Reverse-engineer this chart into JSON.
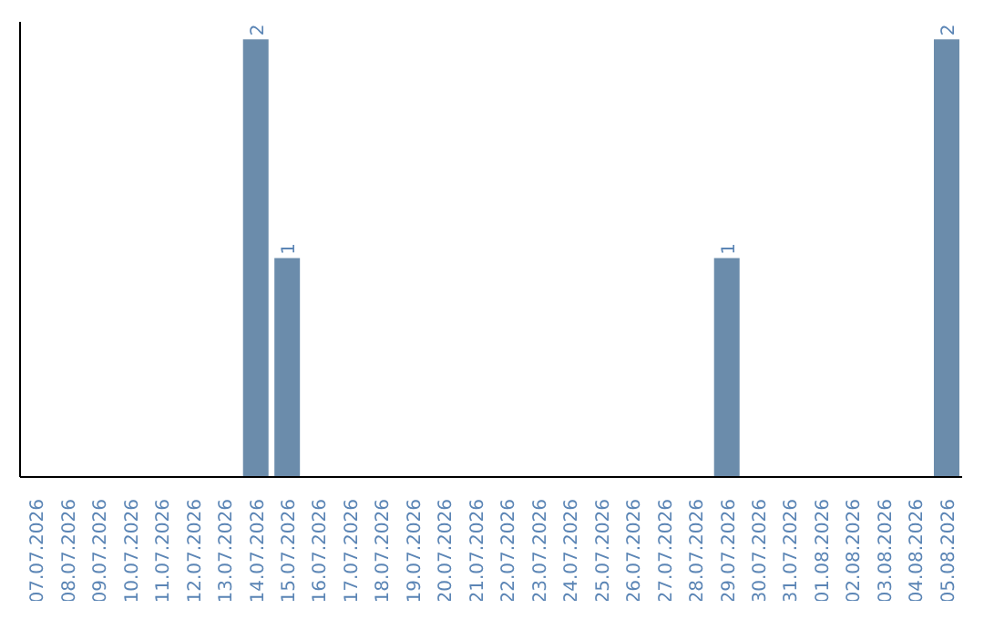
{
  "chart_data": {
    "type": "bar",
    "categories": [
      "07.07.2026",
      "08.07.2026",
      "09.07.2026",
      "10.07.2026",
      "11.07.2026",
      "12.07.2026",
      "13.07.2026",
      "14.07.2026",
      "15.07.2026",
      "16.07.2026",
      "17.07.2026",
      "18.07.2026",
      "19.07.2026",
      "20.07.2026",
      "21.07.2026",
      "22.07.2026",
      "23.07.2026",
      "24.07.2026",
      "25.07.2026",
      "26.07.2026",
      "27.07.2026",
      "28.07.2026",
      "29.07.2026",
      "30.07.2026",
      "31.07.2026",
      "01.08.2026",
      "02.08.2026",
      "03.08.2026",
      "04.08.2026",
      "05.08.2026"
    ],
    "values": [
      0,
      0,
      0,
      0,
      0,
      0,
      0,
      2,
      1,
      0,
      0,
      0,
      0,
      0,
      0,
      0,
      0,
      0,
      0,
      0,
      0,
      0,
      1,
      0,
      0,
      0,
      0,
      0,
      0,
      2
    ],
    "value_labels": [
      null,
      null,
      null,
      null,
      null,
      null,
      null,
      "2",
      "1",
      null,
      null,
      null,
      null,
      null,
      null,
      null,
      null,
      null,
      null,
      null,
      null,
      null,
      "1",
      null,
      null,
      null,
      null,
      null,
      null,
      "2"
    ],
    "color": "#6b8cab",
    "tick_labels": "x"
  }
}
